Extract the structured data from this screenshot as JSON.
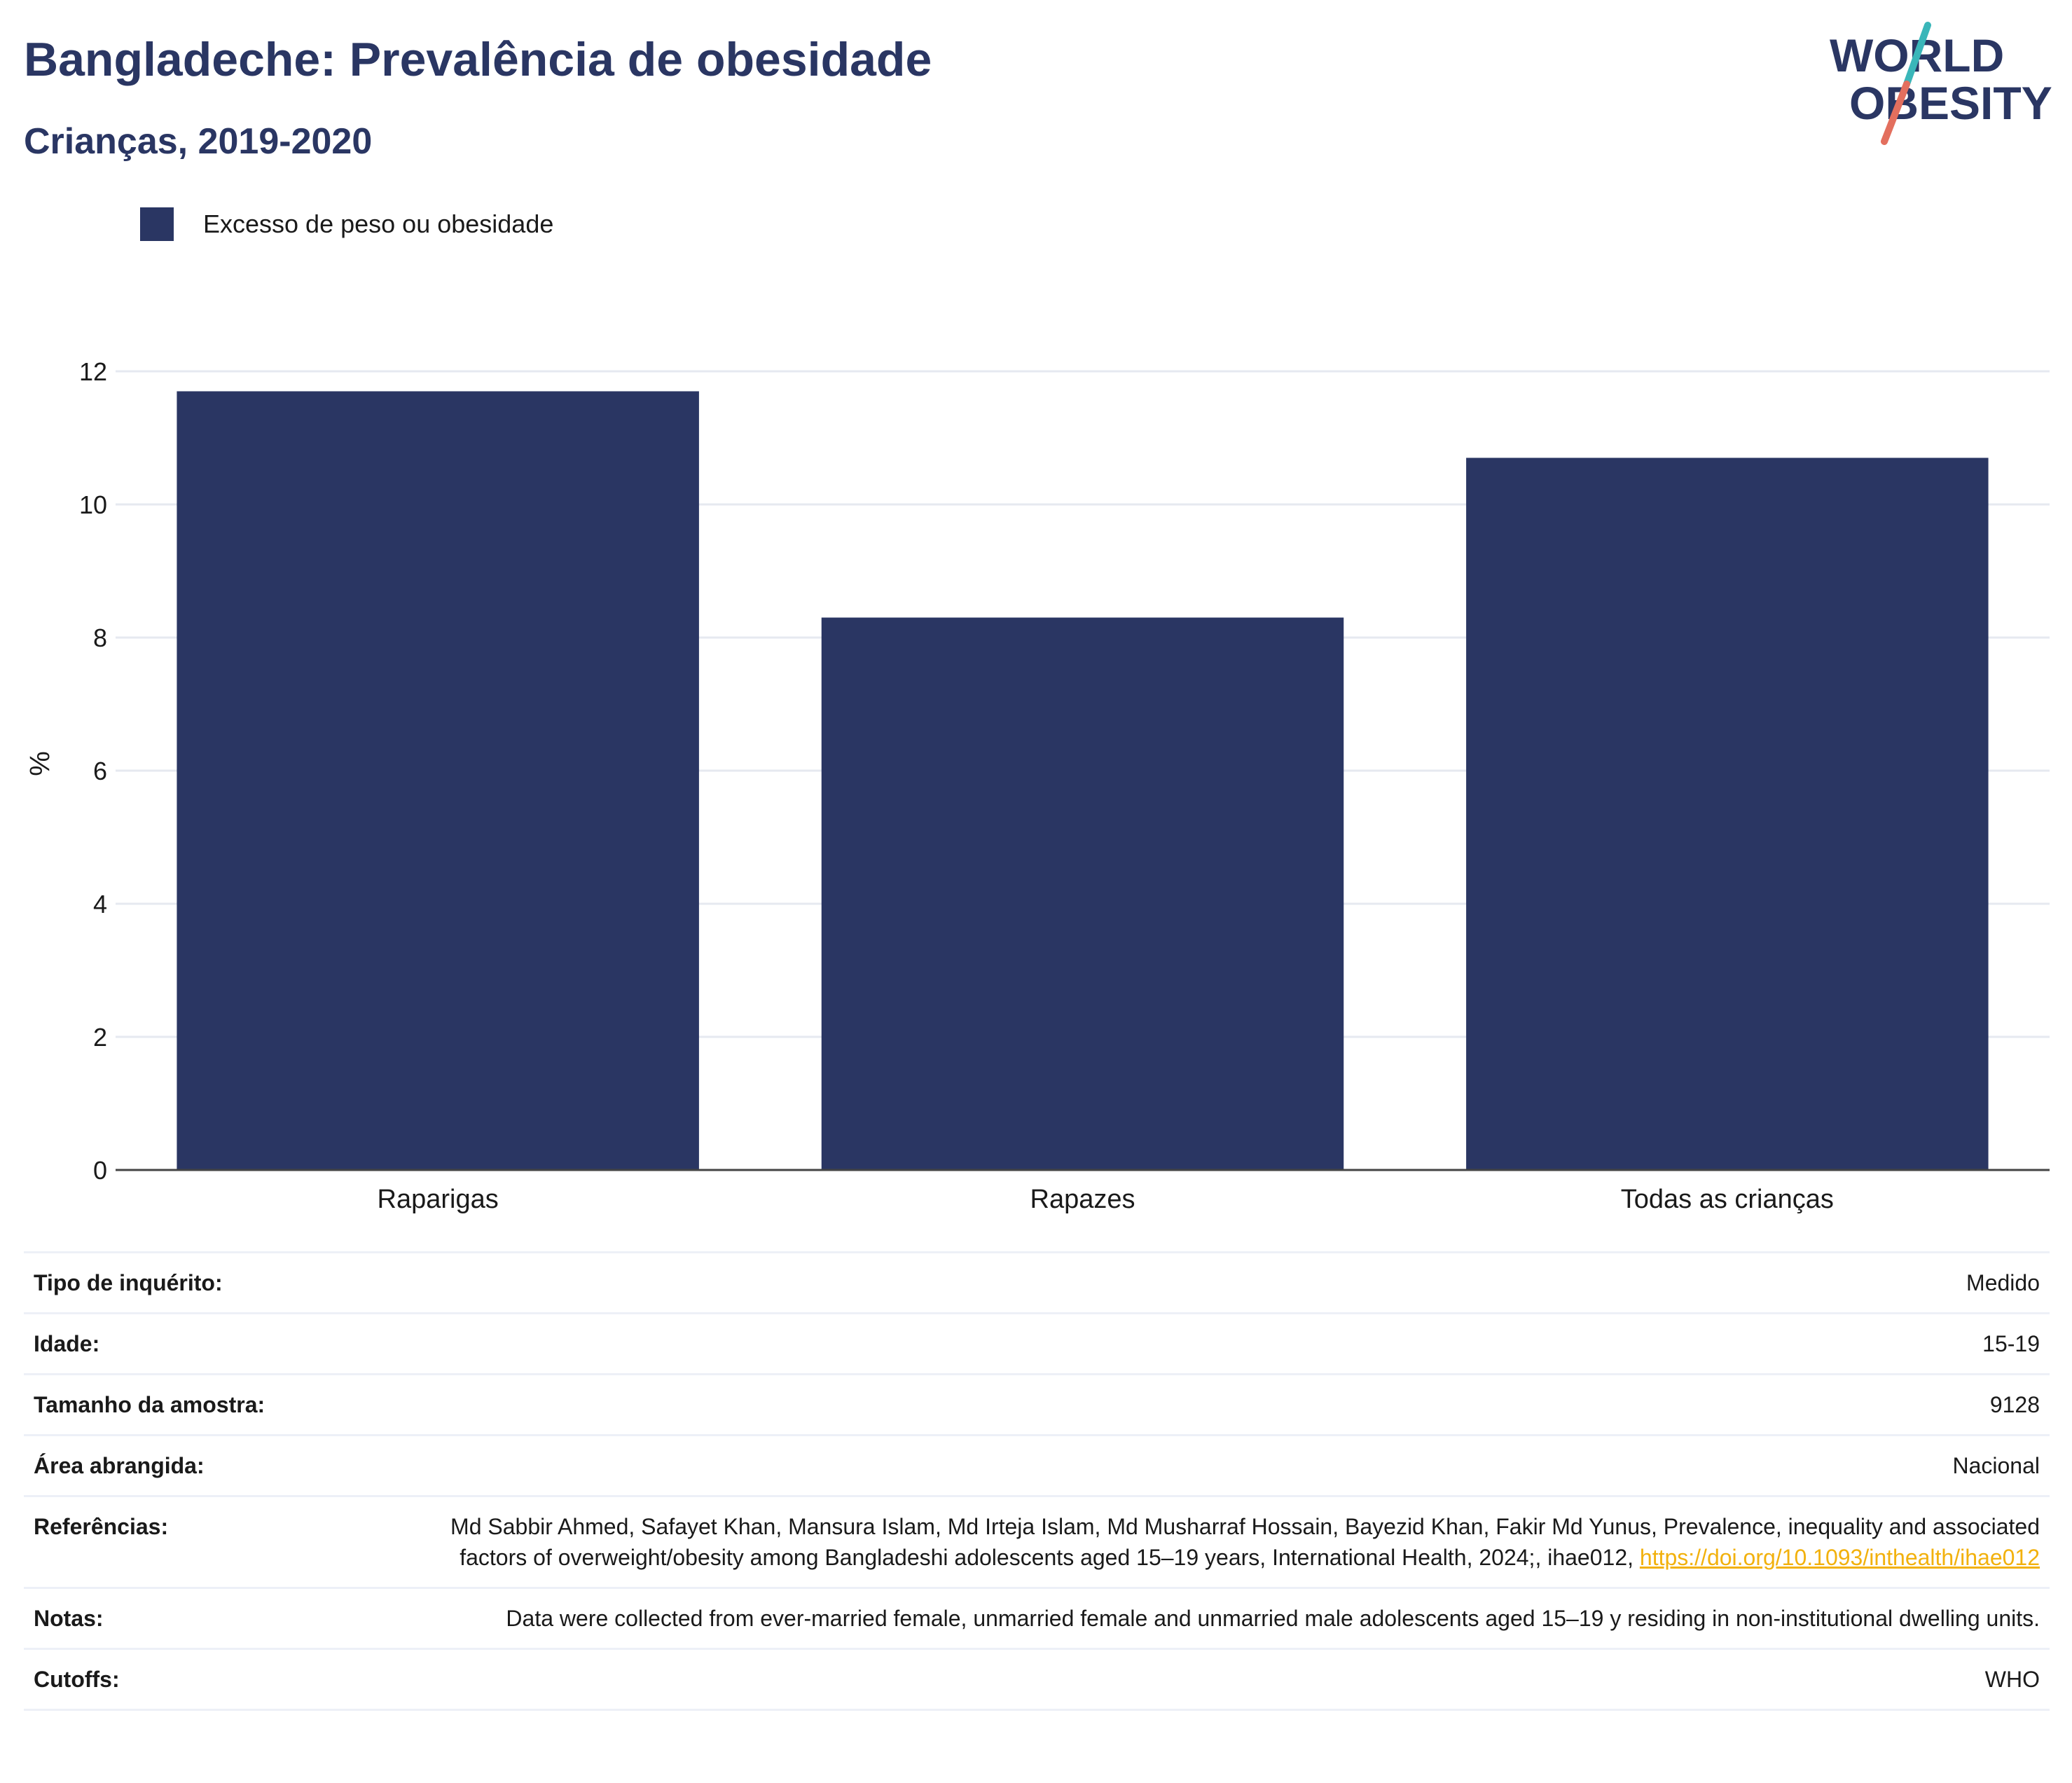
{
  "header": {
    "title": "Bangladeche: Prevalência de obesidade",
    "subtitle": "Crianças, 2019-2020"
  },
  "logo": {
    "line1": "WORLD",
    "line2": "OBESITY",
    "colors": {
      "text": "#2a3663",
      "slash_top": "#3ab6b9",
      "slash_bottom": "#e36f5e"
    }
  },
  "legend": {
    "label": "Excesso de peso ou obesidade",
    "color": "#2a3663"
  },
  "chart_data": {
    "type": "bar",
    "categories": [
      "Raparigas",
      "Rapazes",
      "Todas as crianças"
    ],
    "series": [
      {
        "name": "Excesso de peso ou obesidade",
        "values": [
          11.7,
          8.3,
          10.7
        ],
        "color": "#2a3663"
      }
    ],
    "ylabel": "%",
    "xlabel": "",
    "ylim": [
      0,
      12
    ],
    "yticks": [
      0,
      2,
      4,
      6,
      8,
      10,
      12
    ],
    "grid": true,
    "legend_position": "top-left"
  },
  "info": {
    "rows": [
      {
        "key": "Tipo de inquérito:",
        "value": "Medido"
      },
      {
        "key": "Idade:",
        "value": "15-19"
      },
      {
        "key": "Tamanho da amostra:",
        "value": "9128"
      },
      {
        "key": "Área abrangida:",
        "value": "Nacional"
      },
      {
        "key": "Referências:",
        "value": "Md Sabbir Ahmed, Safayet Khan, Mansura Islam, Md Irteja Islam, Md Musharraf Hossain, Bayezid Khan, Fakir Md Yunus, Prevalence, inequality and associated factors of overweight/obesity among Bangladeshi adolescents aged 15–19 years, International Health, 2024;, ihae012,",
        "link": "https://doi.org/10.1093/inthealth/ihae012"
      },
      {
        "key": "Notas:",
        "value": "Data were collected from ever-married female, unmarried female and unmarried male adolescents aged 15–19 y residing in non-institutional dwelling units."
      },
      {
        "key": "Cutoffs:",
        "value": "WHO"
      }
    ]
  }
}
